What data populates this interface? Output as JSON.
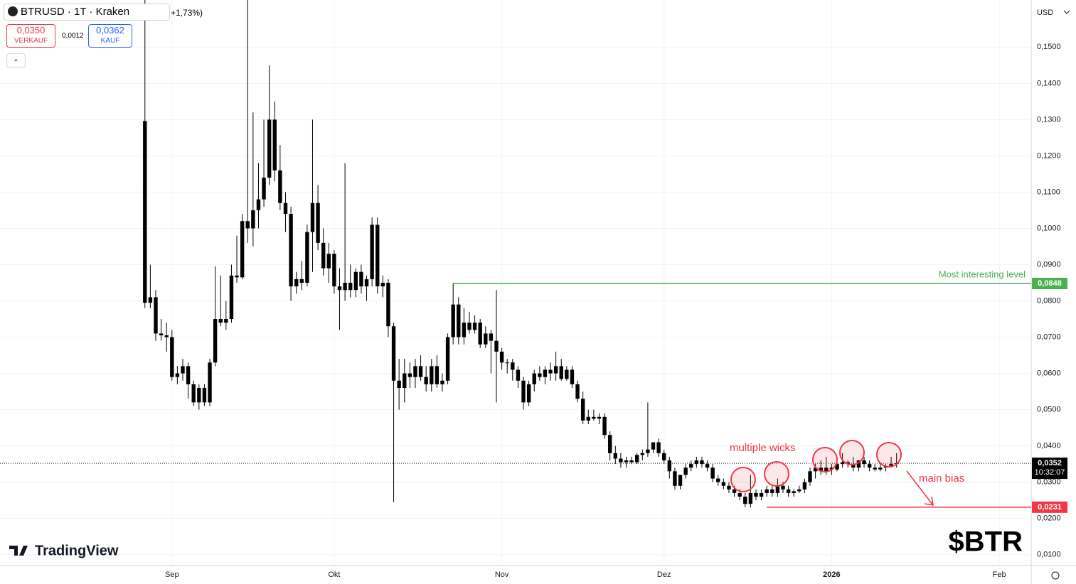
{
  "chart_data": {
    "type": "candlestick",
    "header": {
      "symbol": "BTRUSD · 1T · Kraken",
      "change": "+1,73%)",
      "sell": "0,0350",
      "sell_label": "VERKAUF",
      "spread": "0,0012",
      "buy": "0,0362",
      "buy_label": "KAUF"
    },
    "currency": "USD",
    "brand": "TradingView",
    "watermark": "$BTR",
    "color": "#000000",
    "ylim": [
      0.007,
      0.163
    ],
    "yticks": [
      {
        "value": 0.01,
        "label": "0,0100"
      },
      {
        "value": 0.02,
        "label": "0,0200"
      },
      {
        "value": 0.03,
        "label": "0,0300"
      },
      {
        "value": 0.04,
        "label": "0,0400"
      },
      {
        "value": 0.05,
        "label": "0,0500"
      },
      {
        "value": 0.06,
        "label": "0,0600"
      },
      {
        "value": 0.07,
        "label": "0,0700"
      },
      {
        "value": 0.08,
        "label": "0,0800"
      },
      {
        "value": 0.09,
        "label": "0,0900"
      },
      {
        "value": 0.1,
        "label": "0,1000"
      },
      {
        "value": 0.11,
        "label": "0,1100"
      },
      {
        "value": 0.12,
        "label": "0,1200"
      },
      {
        "value": 0.13,
        "label": "0,1300"
      },
      {
        "value": 0.14,
        "label": "0,1400"
      },
      {
        "value": 0.15,
        "label": "0,1500"
      }
    ],
    "xlim": [
      -26.8,
      163.9
    ],
    "xticks": [
      {
        "value": 5,
        "label": "Sep"
      },
      {
        "value": 35,
        "label": "Okt"
      },
      {
        "value": 66,
        "label": "Nov"
      },
      {
        "value": 96,
        "label": "Dez"
      },
      {
        "value": 127,
        "label": "2026"
      },
      {
        "value": 158,
        "label": "Feb"
      }
    ],
    "grid": true,
    "levels": [
      {
        "value": 0.0848,
        "label": "0,0848",
        "color": "#4caf50",
        "text": "Most interesting level"
      },
      {
        "value": 0.0231,
        "label": "0,0231",
        "color": "#f23645"
      }
    ],
    "last_price": {
      "value": 0.0352,
      "label": "0,0352",
      "countdown": "10:32:07"
    },
    "annotations": [
      "multiple wicks",
      "main bias"
    ],
    "candles": [
      [
        0.1296,
        0.163,
        0.078,
        0.0795
      ],
      [
        0.0795,
        0.09,
        0.078,
        0.081
      ],
      [
        0.081,
        0.083,
        0.069,
        0.071
      ],
      [
        0.071,
        0.075,
        0.069,
        0.0705
      ],
      [
        0.0705,
        0.074,
        0.066,
        0.07
      ],
      [
        0.07,
        0.072,
        0.058,
        0.059
      ],
      [
        0.059,
        0.062,
        0.057,
        0.06
      ],
      [
        0.06,
        0.064,
        0.058,
        0.062
      ],
      [
        0.062,
        0.063,
        0.053,
        0.057
      ],
      [
        0.057,
        0.058,
        0.051,
        0.052
      ],
      [
        0.052,
        0.057,
        0.05,
        0.056
      ],
      [
        0.056,
        0.057,
        0.051,
        0.052
      ],
      [
        0.052,
        0.064,
        0.051,
        0.063
      ],
      [
        0.063,
        0.0895,
        0.062,
        0.075
      ],
      [
        0.075,
        0.087,
        0.073,
        0.074
      ],
      [
        0.074,
        0.08,
        0.072,
        0.075
      ],
      [
        0.075,
        0.09,
        0.074,
        0.087
      ],
      [
        0.087,
        0.098,
        0.085,
        0.0865
      ],
      [
        0.0865,
        0.104,
        0.086,
        0.102
      ],
      [
        0.102,
        0.163,
        0.096,
        0.1
      ],
      [
        0.1,
        0.132,
        0.095,
        0.105
      ],
      [
        0.105,
        0.118,
        0.1,
        0.108
      ],
      [
        0.108,
        0.13,
        0.106,
        0.114
      ],
      [
        0.114,
        0.145,
        0.112,
        0.13
      ],
      [
        0.13,
        0.135,
        0.113,
        0.116
      ],
      [
        0.116,
        0.123,
        0.105,
        0.107
      ],
      [
        0.107,
        0.11,
        0.099,
        0.104
      ],
      [
        0.104,
        0.106,
        0.08,
        0.084
      ],
      [
        0.084,
        0.088,
        0.082,
        0.086
      ],
      [
        0.086,
        0.091,
        0.083,
        0.085
      ],
      [
        0.085,
        0.101,
        0.084,
        0.099
      ],
      [
        0.099,
        0.13,
        0.088,
        0.107
      ],
      [
        0.107,
        0.112,
        0.094,
        0.096
      ],
      [
        0.096,
        0.1,
        0.087,
        0.089
      ],
      [
        0.089,
        0.096,
        0.085,
        0.093
      ],
      [
        0.093,
        0.094,
        0.082,
        0.084
      ],
      [
        0.084,
        0.089,
        0.072,
        0.083
      ],
      [
        0.083,
        0.118,
        0.08,
        0.085
      ],
      [
        0.085,
        0.09,
        0.081,
        0.083
      ],
      [
        0.083,
        0.089,
        0.081,
        0.088
      ],
      [
        0.088,
        0.09,
        0.082,
        0.084
      ],
      [
        0.084,
        0.087,
        0.08,
        0.086
      ],
      [
        0.086,
        0.103,
        0.084,
        0.101
      ],
      [
        0.101,
        0.103,
        0.082,
        0.084
      ],
      [
        0.084,
        0.087,
        0.081,
        0.085
      ],
      [
        0.085,
        0.086,
        0.07,
        0.073
      ],
      [
        0.073,
        0.074,
        0.0245,
        0.058
      ],
      [
        0.058,
        0.064,
        0.05,
        0.056
      ],
      [
        0.056,
        0.064,
        0.052,
        0.06
      ],
      [
        0.06,
        0.063,
        0.056,
        0.059
      ],
      [
        0.059,
        0.064,
        0.056,
        0.062
      ],
      [
        0.062,
        0.065,
        0.058,
        0.059
      ],
      [
        0.059,
        0.062,
        0.055,
        0.057
      ],
      [
        0.057,
        0.064,
        0.055,
        0.062
      ],
      [
        0.062,
        0.065,
        0.056,
        0.057
      ],
      [
        0.057,
        0.06,
        0.055,
        0.058
      ],
      [
        0.058,
        0.071,
        0.057,
        0.07
      ],
      [
        0.07,
        0.0848,
        0.068,
        0.079
      ],
      [
        0.079,
        0.081,
        0.068,
        0.07
      ],
      [
        0.07,
        0.078,
        0.068,
        0.074
      ],
      [
        0.074,
        0.077,
        0.071,
        0.072
      ],
      [
        0.072,
        0.076,
        0.071,
        0.074
      ],
      [
        0.074,
        0.075,
        0.067,
        0.068
      ],
      [
        0.068,
        0.073,
        0.067,
        0.071
      ],
      [
        0.071,
        0.072,
        0.06,
        0.069
      ],
      [
        0.069,
        0.083,
        0.052,
        0.066
      ],
      [
        0.066,
        0.067,
        0.061,
        0.063
      ],
      [
        0.063,
        0.064,
        0.06,
        0.063
      ],
      [
        0.063,
        0.064,
        0.058,
        0.061
      ],
      [
        0.061,
        0.062,
        0.056,
        0.058
      ],
      [
        0.058,
        0.059,
        0.05,
        0.052
      ],
      [
        0.052,
        0.058,
        0.051,
        0.057
      ],
      [
        0.057,
        0.061,
        0.055,
        0.06
      ],
      [
        0.06,
        0.062,
        0.058,
        0.059
      ],
      [
        0.059,
        0.062,
        0.057,
        0.061
      ],
      [
        0.061,
        0.063,
        0.058,
        0.06
      ],
      [
        0.06,
        0.066,
        0.058,
        0.062
      ],
      [
        0.062,
        0.064,
        0.058,
        0.0585
      ],
      [
        0.0585,
        0.062,
        0.058,
        0.061
      ],
      [
        0.061,
        0.062,
        0.056,
        0.057
      ],
      [
        0.057,
        0.058,
        0.052,
        0.053
      ],
      [
        0.053,
        0.055,
        0.046,
        0.047
      ],
      [
        0.047,
        0.05,
        0.046,
        0.048
      ],
      [
        0.048,
        0.05,
        0.047,
        0.0475
      ],
      [
        0.0475,
        0.049,
        0.046,
        0.048
      ],
      [
        0.048,
        0.049,
        0.042,
        0.043
      ],
      [
        0.043,
        0.044,
        0.036,
        0.038
      ],
      [
        0.038,
        0.04,
        0.035,
        0.0365
      ],
      [
        0.0365,
        0.038,
        0.034,
        0.0355
      ],
      [
        0.0355,
        0.037,
        0.034,
        0.036
      ],
      [
        0.036,
        0.037,
        0.035,
        0.0355
      ],
      [
        0.0355,
        0.038,
        0.035,
        0.0375
      ],
      [
        0.0375,
        0.039,
        0.036,
        0.038
      ],
      [
        0.038,
        0.052,
        0.037,
        0.039
      ],
      [
        0.039,
        0.041,
        0.038,
        0.041
      ],
      [
        0.041,
        0.042,
        0.037,
        0.038
      ],
      [
        0.038,
        0.039,
        0.035,
        0.036
      ],
      [
        0.036,
        0.037,
        0.031,
        0.033
      ],
      [
        0.033,
        0.034,
        0.028,
        0.029
      ],
      [
        0.029,
        0.032,
        0.028,
        0.032
      ],
      [
        0.032,
        0.035,
        0.031,
        0.034
      ],
      [
        0.034,
        0.036,
        0.033,
        0.035
      ],
      [
        0.035,
        0.037,
        0.034,
        0.036
      ],
      [
        0.036,
        0.037,
        0.034,
        0.035
      ],
      [
        0.035,
        0.036,
        0.033,
        0.034
      ],
      [
        0.034,
        0.035,
        0.03,
        0.031
      ],
      [
        0.031,
        0.032,
        0.029,
        0.03
      ],
      [
        0.03,
        0.031,
        0.028,
        0.029
      ],
      [
        0.029,
        0.03,
        0.027,
        0.028
      ],
      [
        0.028,
        0.029,
        0.026,
        0.027
      ],
      [
        0.027,
        0.028,
        0.025,
        0.026
      ],
      [
        0.026,
        0.027,
        0.0231,
        0.024
      ],
      [
        0.024,
        0.032,
        0.023,
        0.027
      ],
      [
        0.027,
        0.028,
        0.025,
        0.026
      ],
      [
        0.026,
        0.028,
        0.025,
        0.027
      ],
      [
        0.027,
        0.029,
        0.026,
        0.028
      ],
      [
        0.028,
        0.029,
        0.026,
        0.027
      ],
      [
        0.027,
        0.031,
        0.026,
        0.029
      ],
      [
        0.029,
        0.03,
        0.027,
        0.028
      ],
      [
        0.028,
        0.029,
        0.026,
        0.027
      ],
      [
        0.027,
        0.028,
        0.026,
        0.0275
      ],
      [
        0.0275,
        0.029,
        0.027,
        0.028
      ],
      [
        0.028,
        0.031,
        0.027,
        0.03
      ],
      [
        0.03,
        0.034,
        0.029,
        0.033
      ],
      [
        0.033,
        0.035,
        0.031,
        0.034
      ],
      [
        0.034,
        0.036,
        0.032,
        0.033
      ],
      [
        0.033,
        0.037,
        0.032,
        0.034
      ],
      [
        0.034,
        0.035,
        0.032,
        0.0335
      ],
      [
        0.0335,
        0.036,
        0.033,
        0.035
      ],
      [
        0.035,
        0.038,
        0.034,
        0.0355
      ],
      [
        0.0355,
        0.036,
        0.034,
        0.035
      ],
      [
        0.035,
        0.037,
        0.033,
        0.034
      ],
      [
        0.034,
        0.036,
        0.033,
        0.036
      ],
      [
        0.036,
        0.037,
        0.034,
        0.035
      ],
      [
        0.035,
        0.036,
        0.033,
        0.034
      ],
      [
        0.034,
        0.035,
        0.033,
        0.0335
      ],
      [
        0.0335,
        0.035,
        0.033,
        0.034
      ],
      [
        0.034,
        0.035,
        0.033,
        0.0345
      ],
      [
        0.0345,
        0.037,
        0.034,
        0.035
      ],
      [
        0.035,
        0.038,
        0.034,
        0.0352
      ]
    ]
  }
}
